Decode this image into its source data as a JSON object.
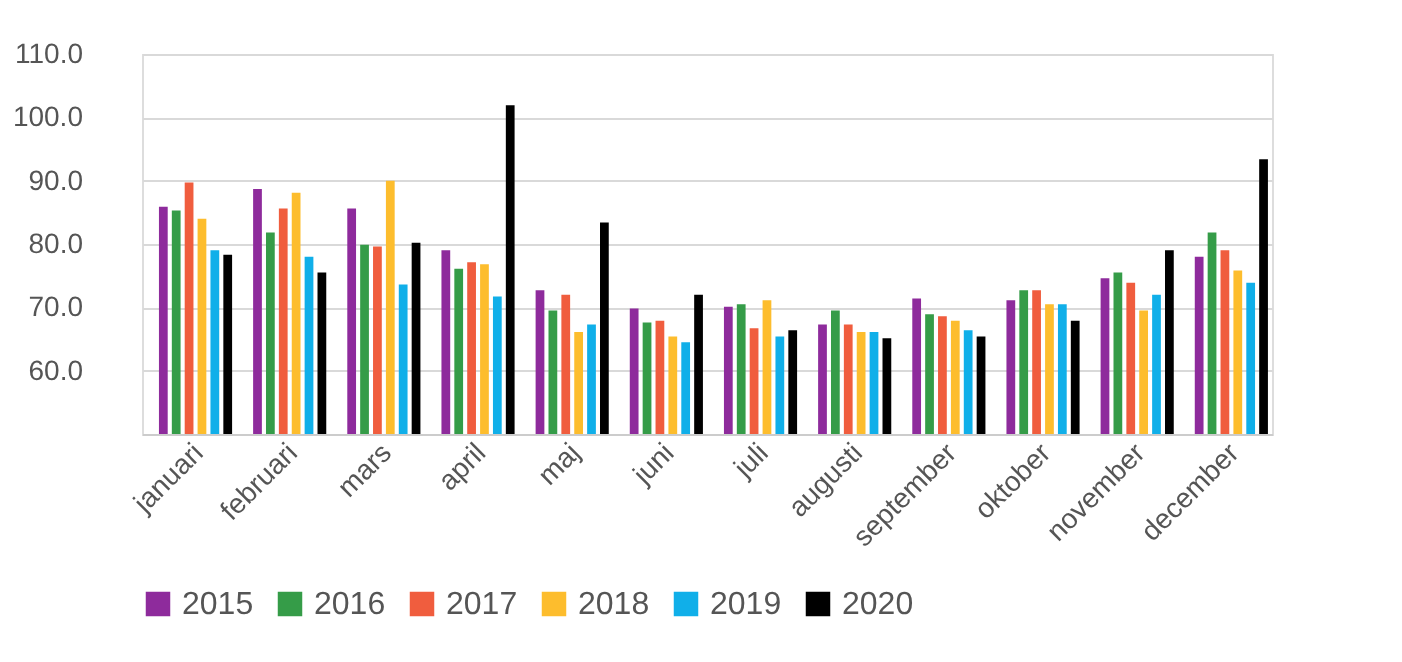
{
  "chart_data": {
    "type": "bar",
    "categories": [
      "januari",
      "februari",
      "mars",
      "april",
      "maj",
      "juni",
      "juli",
      "augusti",
      "september",
      "oktober",
      "november",
      "december"
    ],
    "series": [
      {
        "name": "2015",
        "color": "#8e2b9c",
        "values": [
          85.9,
          88.7,
          85.6,
          79.0,
          72.7,
          69.8,
          70.1,
          67.3,
          71.4,
          71.1,
          74.6,
          78.0
        ]
      },
      {
        "name": "2016",
        "color": "#359c48",
        "values": [
          85.3,
          81.8,
          79.9,
          76.1,
          69.5,
          67.6,
          70.5,
          69.5,
          68.9,
          72.7,
          75.5,
          81.8
        ]
      },
      {
        "name": "2017",
        "color": "#f05d3e",
        "values": [
          89.7,
          85.6,
          79.6,
          77.1,
          72.0,
          67.9,
          66.7,
          67.3,
          68.6,
          72.7,
          73.9,
          79.0
        ]
      },
      {
        "name": "2018",
        "color": "#fdbd2d",
        "values": [
          84.0,
          88.1,
          90.0,
          76.8,
          66.1,
          65.4,
          71.1,
          66.1,
          67.9,
          70.5,
          69.5,
          75.8
        ]
      },
      {
        "name": "2019",
        "color": "#10afe9",
        "values": [
          79.0,
          78.0,
          73.6,
          71.7,
          67.3,
          64.5,
          65.4,
          66.1,
          66.4,
          70.5,
          72.0,
          73.9
        ]
      },
      {
        "name": "2020",
        "color": "#000000",
        "values": [
          78.3,
          75.5,
          80.2,
          101.9,
          83.4,
          72.0,
          66.4,
          65.1,
          65.4,
          67.9,
          79.0,
          93.4
        ]
      }
    ],
    "ylim": [
      50,
      110
    ],
    "yticks": [
      {
        "value": 60,
        "label": "60.0"
      },
      {
        "value": 70,
        "label": "70.0"
      },
      {
        "value": 80,
        "label": "80.0"
      },
      {
        "value": 90,
        "label": "90.0"
      },
      {
        "value": 100,
        "label": "100.0"
      },
      {
        "value": 110,
        "label": "110.0"
      }
    ],
    "grid": "y",
    "legend": "bottom"
  }
}
